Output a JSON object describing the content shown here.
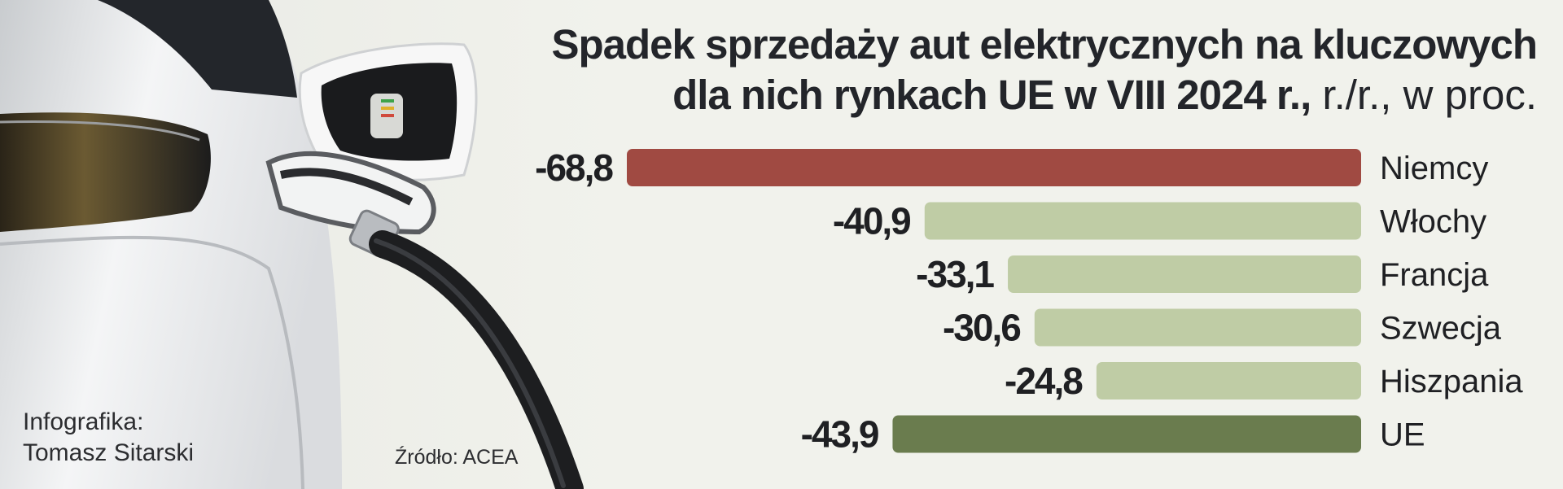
{
  "header": {
    "title_main": "Spadek sprzedaży aut elektrycznych na kluczowych dla nich rynkach UE w VIII 2024 r.,",
    "title_unit": " r./r., w proc."
  },
  "credit": {
    "line1": "Infografika:",
    "line2": "Tomasz Sitarski"
  },
  "source": "Źródło: ACEA",
  "photo": {
    "subject": "electric-car-charging-plug-icon"
  },
  "colors": {
    "highlight_bar": "#a04a42",
    "country_bar": "#bfcca5",
    "eu_bar": "#6a7c4e",
    "background": "#f1f2ec"
  },
  "chart_data": {
    "type": "bar",
    "orientation": "horizontal",
    "title": "Spadek sprzedaży aut elektrycznych na kluczowych dla nich rynkach UE w VIII 2024 r., r./r., w proc.",
    "categories": [
      "Niemcy",
      "Włochy",
      "Francja",
      "Szwecja",
      "Hiszpania",
      "UE"
    ],
    "values": [
      -68.8,
      -40.9,
      -33.1,
      -30.6,
      -24.8,
      -43.9
    ],
    "value_labels": [
      "-68,8",
      "-40,9",
      "-33,1",
      "-30,6",
      "-24,8",
      "-43,9"
    ],
    "bar_colors": [
      "#a04a42",
      "#bfcca5",
      "#bfcca5",
      "#bfcca5",
      "#bfcca5",
      "#6a7c4e"
    ],
    "xlim": [
      -68.8,
      0
    ],
    "grid": false,
    "legend": "none"
  }
}
